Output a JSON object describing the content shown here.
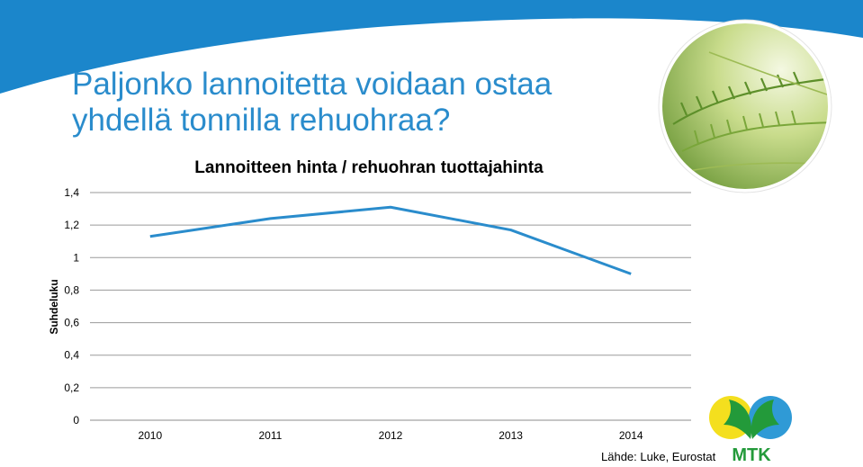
{
  "slide": {
    "title_line1": "Paljonko lannoitetta voidaan ostaa",
    "title_line2": "yhdellä tonnilla rehuohraa?",
    "source": "Lähde: Luke, Eurostat",
    "logo_text": "MTK",
    "colors": {
      "header_blue": "#1b86cb",
      "title_blue": "#2a8ccc",
      "logo_green": "#239a3a",
      "logo_yellow": "#f4df1e",
      "logo_blue": "#2f9ad6"
    },
    "photo": "barley-ears-photo"
  },
  "chart_data": {
    "type": "line",
    "title": "Lannoitteen hinta / rehuohran tuottajahinta",
    "xlabel": "",
    "ylabel": "Suhdeluku",
    "categories": [
      "2010",
      "2011",
      "2012",
      "2013",
      "2014"
    ],
    "series": [
      {
        "values": [
          1.13,
          1.24,
          1.31,
          1.17,
          0.9
        ],
        "color": "#2a8ccc"
      }
    ],
    "ylim": [
      0,
      1.4
    ],
    "yticks": [
      {
        "value": 0,
        "label": "0"
      },
      {
        "value": 0.2,
        "label": "0,2"
      },
      {
        "value": 0.4,
        "label": "0,4"
      },
      {
        "value": 0.6,
        "label": "0,6"
      },
      {
        "value": 0.8,
        "label": "0,8"
      },
      {
        "value": 1,
        "label": "1"
      },
      {
        "value": 1.2,
        "label": "1,2"
      },
      {
        "value": 1.4,
        "label": "1,4"
      }
    ],
    "grid": true,
    "legend": "none"
  }
}
